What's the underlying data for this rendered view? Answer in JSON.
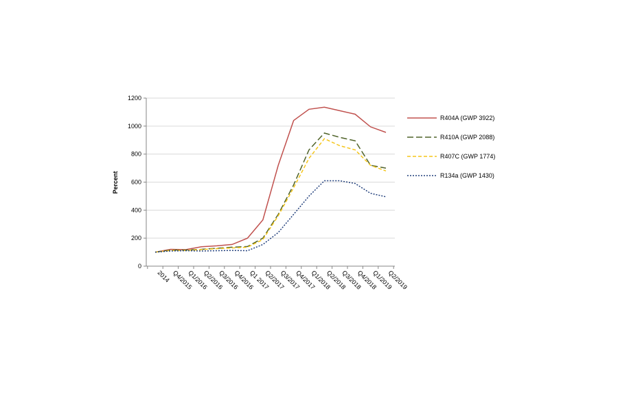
{
  "chart_data": {
    "type": "line",
    "title": "",
    "xlabel": "",
    "ylabel": "Percent",
    "ylim": [
      0,
      1200
    ],
    "yticks": [
      0,
      200,
      400,
      600,
      800,
      1000,
      1200
    ],
    "grid": true,
    "legend_position": "right",
    "categories": [
      "2014",
      "Q4/2015",
      "Q1/2016",
      "Q2/2016",
      "Q3/2016",
      "Q4/2016",
      "Q1 2017",
      "Q2/2017",
      "Q3/2017",
      "Q4/2017",
      "Q1/2018",
      "Q2/2018",
      "Q3/2018",
      "Q4/2018",
      "Q1/2019",
      "Q2/2019"
    ],
    "series": [
      {
        "name": "R404A (GWP 3922)",
        "color": "#c0504d",
        "dash": "solid",
        "values": [
          100,
          120,
          118,
          138,
          145,
          155,
          200,
          330,
          720,
          1040,
          1120,
          1135,
          1110,
          1085,
          995,
          955
        ]
      },
      {
        "name": "R410A (GWP 2088)",
        "color": "#4f6228",
        "dash": "long-dash",
        "values": [
          100,
          115,
          115,
          120,
          128,
          135,
          140,
          200,
          370,
          580,
          830,
          950,
          920,
          895,
          720,
          700
        ]
      },
      {
        "name": "R407C (GWP 1774)",
        "color": "#f5c518",
        "dash": "dash",
        "values": [
          100,
          112,
          112,
          118,
          125,
          130,
          135,
          190,
          360,
          560,
          770,
          910,
          860,
          830,
          720,
          680
        ]
      },
      {
        "name": "R134a (GWP 1430)",
        "color": "#1f3d7a",
        "dash": "dot",
        "values": [
          100,
          108,
          110,
          108,
          110,
          112,
          110,
          155,
          240,
          370,
          500,
          610,
          610,
          590,
          520,
          495
        ]
      }
    ]
  }
}
